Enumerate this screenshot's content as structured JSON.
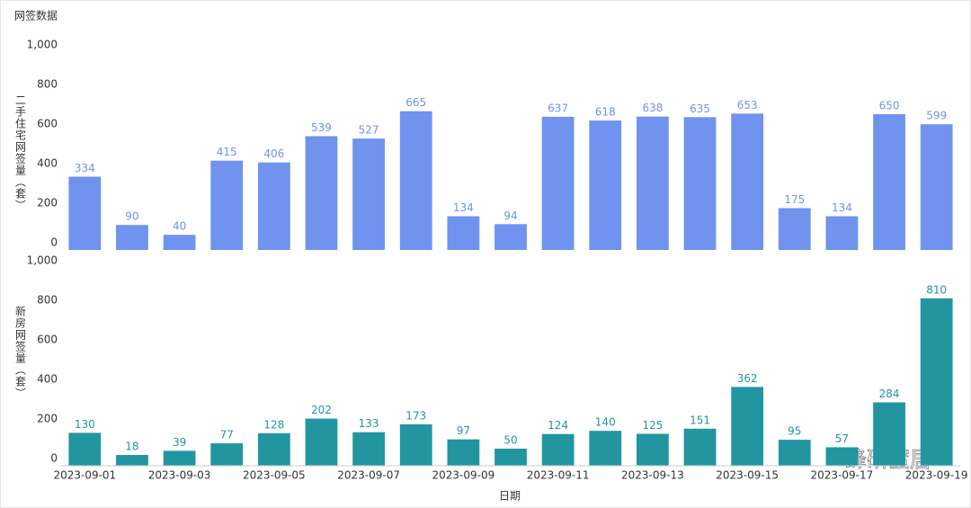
{
  "chart_data": {
    "type": "bar",
    "title": "网签数据",
    "x_label": "日期",
    "watermark": "蜂研蜜居",
    "categories": [
      "2023-09-01",
      null,
      "2023-09-03",
      null,
      "2023-09-05",
      null,
      "2023-09-07",
      null,
      "2023-09-09",
      null,
      "2023-09-11",
      null,
      "2023-09-13",
      null,
      "2023-09-15",
      null,
      "2023-09-17",
      null,
      "2023-09-19"
    ],
    "panels": [
      {
        "y_label": "二手住宅网签量（套）",
        "color": "#6f93ee",
        "values": [
          334,
          90,
          40,
          415,
          406,
          539,
          527,
          665,
          134,
          94,
          637,
          618,
          638,
          635,
          653,
          175,
          134,
          650,
          599
        ],
        "ylim": [
          0,
          1000
        ],
        "yticks": [
          0,
          200,
          400,
          600,
          800,
          {
            "value": 1000,
            "label": "1,000"
          }
        ]
      },
      {
        "y_label": "新房网签量（套）",
        "color": "#2196a0",
        "values": [
          130,
          18,
          39,
          77,
          128,
          202,
          133,
          173,
          97,
          50,
          124,
          140,
          125,
          151,
          362,
          95,
          57,
          284,
          810
        ],
        "ylim": [
          0,
          1000
        ],
        "yticks": [
          0,
          200,
          400,
          600,
          800,
          {
            "value": 1000,
            "label": "1,000"
          }
        ]
      }
    ]
  }
}
